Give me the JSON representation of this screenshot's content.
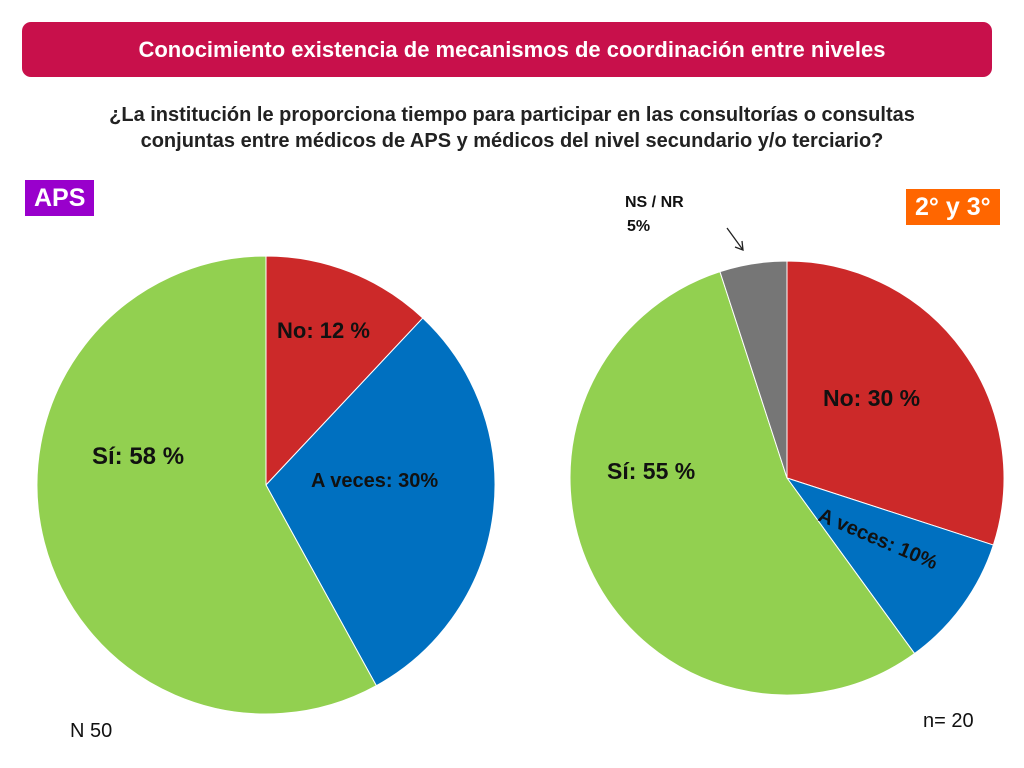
{
  "banner": {
    "title": "Conocimiento existencia de mecanismos de  coordinación entre niveles"
  },
  "question": {
    "line1": "¿La institución le proporciona tiempo para participar en las consultorías o consultas",
    "line2": "conjuntas entre médicos de APS y médicos del nivel secundario y/o terciario?"
  },
  "colors": {
    "banner": "#c8104b",
    "aps_tag": "#9900cc",
    "sec_tag": "#ff6600"
  },
  "chart_data": [
    {
      "type": "pie",
      "title": "APS",
      "note": "N 50",
      "slices": [
        {
          "name": "No",
          "label": "No: 12 %",
          "value": 12,
          "color": "#cc2929"
        },
        {
          "name": "A veces",
          "label": "A veces:  30%",
          "value": 30,
          "color": "#0070c0"
        },
        {
          "name": "Sí",
          "label": "Sí:  58 %",
          "value": 58,
          "color": "#92d050"
        }
      ]
    },
    {
      "type": "pie",
      "title": "2° y 3°",
      "note": "n= 20",
      "slices": [
        {
          "name": "No",
          "label": "No:  30 %",
          "value": 30,
          "color": "#cc2929"
        },
        {
          "name": "A veces",
          "label": "A veces:  10%",
          "value": 10,
          "color": "#0070c0"
        },
        {
          "name": "Sí",
          "label": "Sí:    55 %",
          "value": 55,
          "color": "#92d050"
        },
        {
          "name": "NS / NR",
          "label_line1": "NS / NR",
          "label_line2": "5%",
          "value": 5,
          "color": "#767676"
        }
      ]
    }
  ]
}
